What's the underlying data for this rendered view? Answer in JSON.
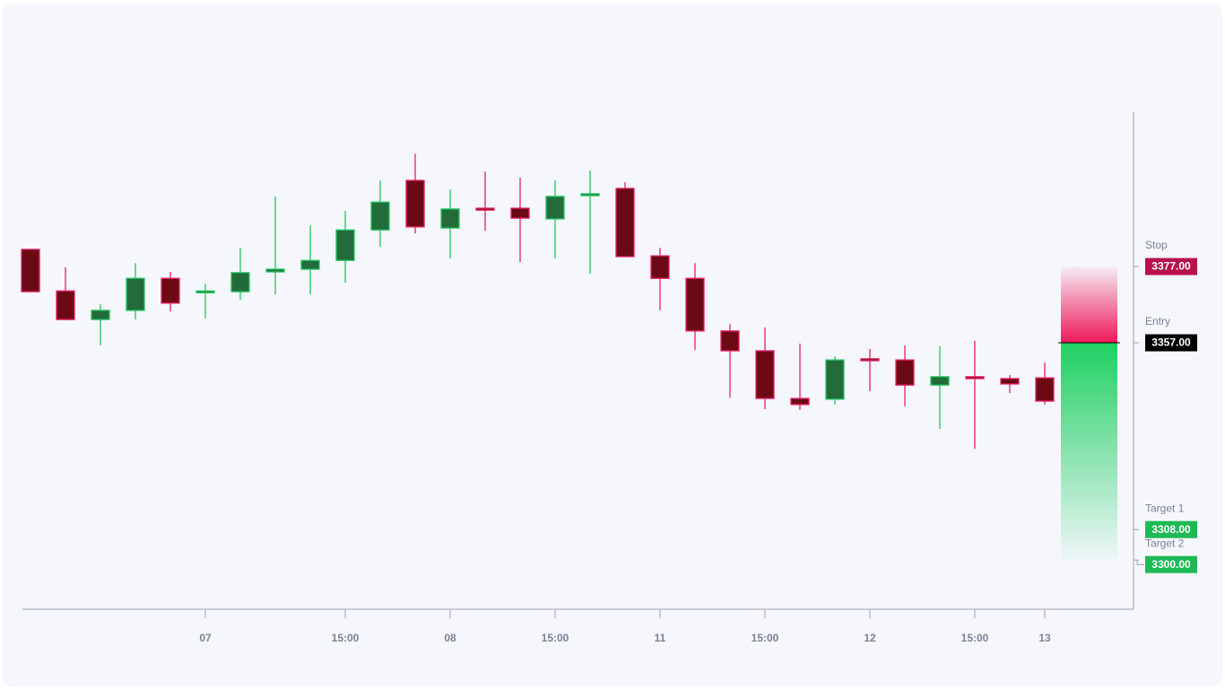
{
  "chart_data": {
    "type": "candlestick",
    "categories": [
      null,
      null,
      null,
      null,
      null,
      "07",
      null,
      null,
      null,
      "15:00",
      null,
      null,
      "08",
      null,
      null,
      "15:00",
      null,
      null,
      "11",
      null,
      null,
      "15:00",
      null,
      null,
      "12",
      null,
      null,
      "15:00",
      null,
      "13"
    ],
    "open": [
      3381.5,
      3370.6,
      3363.1,
      3365.5,
      3373.9,
      3370.2,
      3370.4,
      3375.6,
      3376.3,
      3378.6,
      3386.6,
      3399.6,
      3387.1,
      3392.3,
      3392.3,
      3389.5,
      3395.6,
      3397.5,
      3379.8,
      3373.9,
      3360.1,
      3354.9,
      3342.4,
      3342.2,
      3352.8,
      3352.5,
      3345.9,
      3348.1,
      3347.6,
      3347.8
    ],
    "high": [
      3381.5,
      3376.8,
      3367.1,
      3377.9,
      3375.6,
      3372.5,
      3381.9,
      3395.4,
      3387.8,
      3391.6,
      3399.6,
      3406.6,
      3397.2,
      3401.9,
      3400.3,
      3399.6,
      3402.2,
      3399.1,
      3381.9,
      3377.9,
      3361.9,
      3361.0,
      3356.8,
      3353.5,
      3355.4,
      3356.3,
      3356.1,
      3357.5,
      3348.5,
      3351.8
    ],
    "low": [
      3370.4,
      3362.9,
      3356.3,
      3363.1,
      3365.2,
      3363.4,
      3368.3,
      3369.7,
      3369.7,
      3372.8,
      3382.2,
      3385.7,
      3379.1,
      3386.4,
      3378.2,
      3379.1,
      3375.1,
      3379.6,
      3365.5,
      3355.1,
      3342.6,
      3339.6,
      3339.4,
      3340.8,
      3344.3,
      3340.3,
      3334.4,
      3329.2,
      3343.8,
      3340.8
    ],
    "close": [
      3370.4,
      3363.1,
      3365.5,
      3373.9,
      3367.4,
      3370.6,
      3375.4,
      3376.3,
      3378.6,
      3386.6,
      3393.9,
      3387.4,
      3392.1,
      3391.8,
      3389.7,
      3395.4,
      3396.1,
      3379.6,
      3373.9,
      3360.1,
      3354.9,
      3342.4,
      3340.8,
      3352.5,
      3352.3,
      3345.9,
      3348.1,
      3347.6,
      3346.2,
      3341.7
    ],
    "up_color": "#22c55e",
    "down_color": "#e91e63",
    "ylim": [
      3287.1,
      3417.5
    ],
    "levels": [
      {
        "name": "Stop",
        "value": 3377,
        "label": "3377.00",
        "color": "#b8124c"
      },
      {
        "name": "Entry",
        "value": 3357,
        "label": "3357.00",
        "color": "#000000"
      },
      {
        "name": "Target 1",
        "value": 3308,
        "label": "3308.00",
        "color": "#1db954"
      },
      {
        "name": "Target 2",
        "value": 3300,
        "label": "3300.00",
        "color": "#1db954"
      }
    ]
  }
}
